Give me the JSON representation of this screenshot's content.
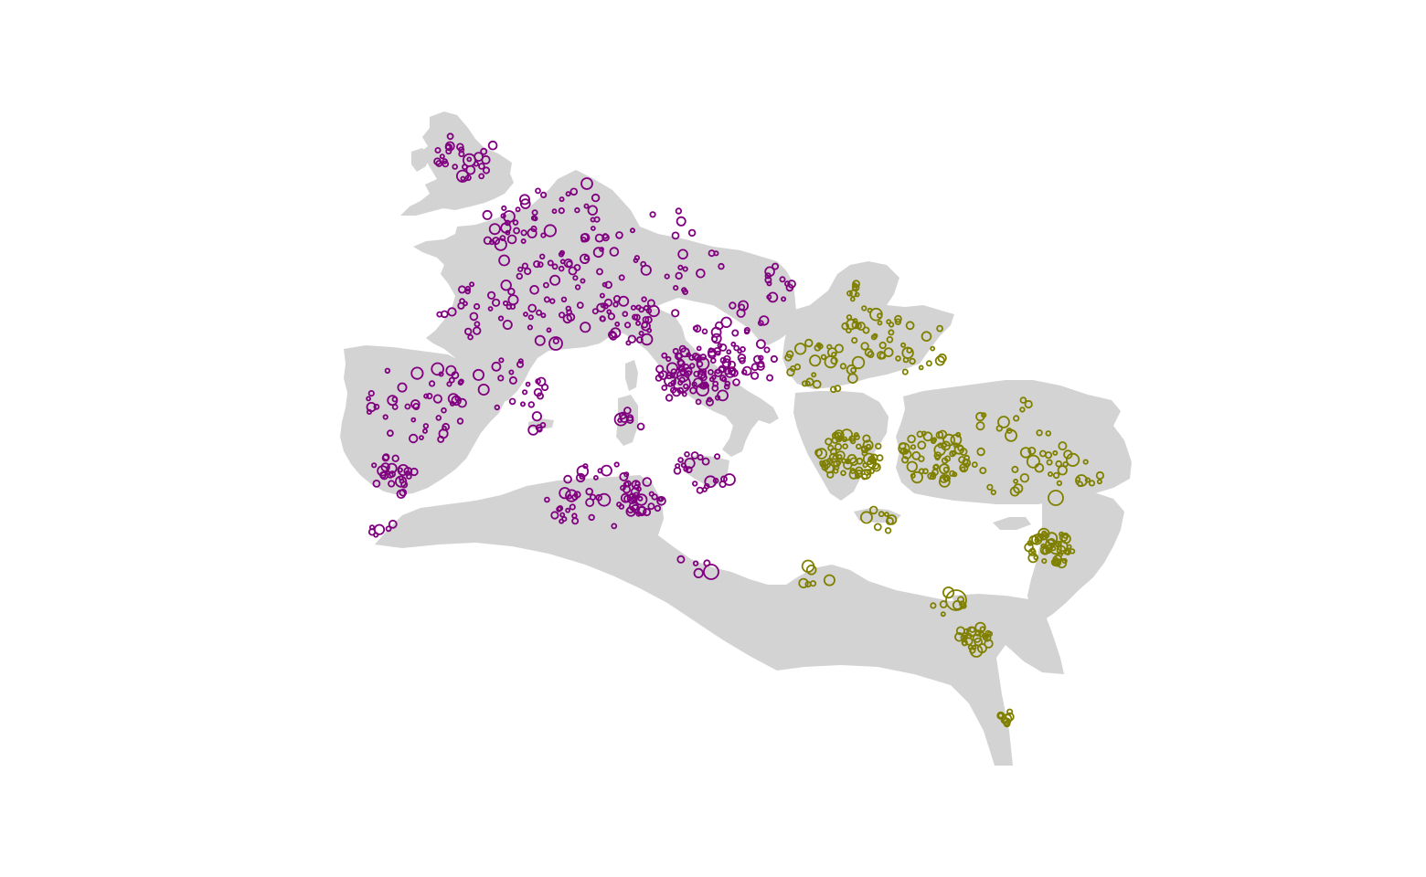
{
  "map": {
    "background_color": "#ffffff",
    "land_color": "#d3d3d3",
    "groups": [
      {
        "id": "west",
        "color": "#800080"
      },
      {
        "id": "east",
        "color": "#808000"
      }
    ],
    "regions": [
      "britain",
      "ireland",
      "gaul-germania",
      "iberia",
      "italy",
      "sicily",
      "sardinia",
      "corsica",
      "north-africa",
      "balkans-dacia",
      "greece",
      "anatolia",
      "levant-arabia",
      "egypt-sinai",
      "cyprus",
      "crete",
      "balearics"
    ]
  }
}
